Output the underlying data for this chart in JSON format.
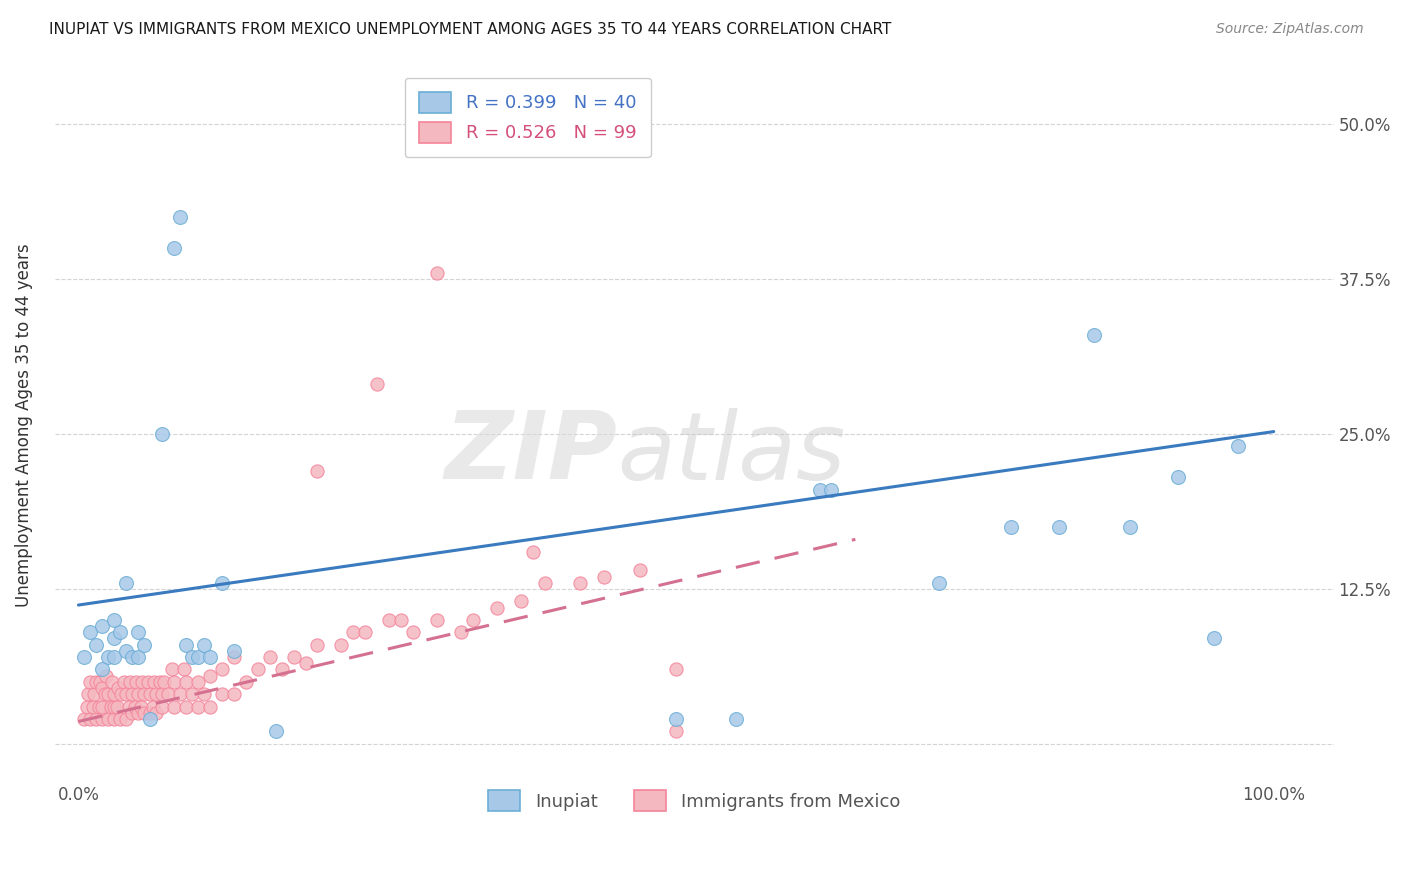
{
  "title": "INUPIAT VS IMMIGRANTS FROM MEXICO UNEMPLOYMENT AMONG AGES 35 TO 44 YEARS CORRELATION CHART",
  "source": "Source: ZipAtlas.com",
  "ylabel": "Unemployment Among Ages 35 to 44 years",
  "xlim": [
    -0.02,
    1.05
  ],
  "ylim": [
    -0.03,
    0.545
  ],
  "inupiat_color": "#a8c8e8",
  "inupiat_edge_color": "#6baed6",
  "mexico_color": "#f4b8c0",
  "mexico_edge_color": "#f4849a",
  "inupiat_R": "0.399",
  "inupiat_N": "40",
  "mexico_R": "0.526",
  "mexico_N": "99",
  "inupiat_trend_x": [
    0.0,
    1.0
  ],
  "inupiat_trend_y": [
    0.112,
    0.252
  ],
  "mexico_trend_x": [
    0.0,
    0.65
  ],
  "mexico_trend_y": [
    0.018,
    0.165
  ],
  "watermark_zip": "ZIP",
  "watermark_atlas": "atlas",
  "background_color": "#ffffff",
  "grid_color": "#d0d0d0",
  "inupiat_x": [
    0.005,
    0.01,
    0.015,
    0.02,
    0.02,
    0.025,
    0.03,
    0.03,
    0.03,
    0.035,
    0.04,
    0.04,
    0.045,
    0.05,
    0.05,
    0.055,
    0.06,
    0.07,
    0.08,
    0.085,
    0.09,
    0.095,
    0.1,
    0.105,
    0.11,
    0.12,
    0.13,
    0.165,
    0.5,
    0.55,
    0.62,
    0.63,
    0.72,
    0.78,
    0.82,
    0.85,
    0.88,
    0.92,
    0.95,
    0.97
  ],
  "inupiat_y": [
    0.07,
    0.09,
    0.08,
    0.06,
    0.095,
    0.07,
    0.07,
    0.085,
    0.1,
    0.09,
    0.075,
    0.13,
    0.07,
    0.07,
    0.09,
    0.08,
    0.02,
    0.25,
    0.4,
    0.425,
    0.08,
    0.07,
    0.07,
    0.08,
    0.07,
    0.13,
    0.075,
    0.01,
    0.02,
    0.02,
    0.205,
    0.205,
    0.13,
    0.175,
    0.175,
    0.33,
    0.175,
    0.215,
    0.085,
    0.24
  ],
  "mexico_x": [
    0.005,
    0.007,
    0.008,
    0.01,
    0.01,
    0.012,
    0.013,
    0.015,
    0.015,
    0.017,
    0.018,
    0.02,
    0.02,
    0.02,
    0.022,
    0.023,
    0.025,
    0.025,
    0.027,
    0.028,
    0.03,
    0.03,
    0.03,
    0.032,
    0.033,
    0.035,
    0.036,
    0.038,
    0.04,
    0.04,
    0.042,
    0.043,
    0.045,
    0.045,
    0.047,
    0.048,
    0.05,
    0.05,
    0.052,
    0.053,
    0.055,
    0.055,
    0.058,
    0.06,
    0.06,
    0.062,
    0.063,
    0.065,
    0.065,
    0.068,
    0.07,
    0.07,
    0.072,
    0.075,
    0.078,
    0.08,
    0.08,
    0.085,
    0.088,
    0.09,
    0.09,
    0.095,
    0.1,
    0.1,
    0.105,
    0.11,
    0.11,
    0.12,
    0.12,
    0.13,
    0.13,
    0.14,
    0.15,
    0.16,
    0.17,
    0.18,
    0.19,
    0.2,
    0.22,
    0.23,
    0.24,
    0.26,
    0.27,
    0.28,
    0.3,
    0.32,
    0.33,
    0.35,
    0.37,
    0.39,
    0.42,
    0.44,
    0.47,
    0.5,
    0.2,
    0.25,
    0.3,
    0.38,
    0.5
  ],
  "mexico_y": [
    0.02,
    0.03,
    0.04,
    0.02,
    0.05,
    0.03,
    0.04,
    0.02,
    0.05,
    0.03,
    0.05,
    0.02,
    0.03,
    0.045,
    0.04,
    0.055,
    0.02,
    0.04,
    0.03,
    0.05,
    0.02,
    0.03,
    0.04,
    0.03,
    0.045,
    0.02,
    0.04,
    0.05,
    0.02,
    0.04,
    0.03,
    0.05,
    0.025,
    0.04,
    0.03,
    0.05,
    0.025,
    0.04,
    0.03,
    0.05,
    0.025,
    0.04,
    0.05,
    0.025,
    0.04,
    0.03,
    0.05,
    0.025,
    0.04,
    0.05,
    0.03,
    0.04,
    0.05,
    0.04,
    0.06,
    0.03,
    0.05,
    0.04,
    0.06,
    0.03,
    0.05,
    0.04,
    0.03,
    0.05,
    0.04,
    0.03,
    0.055,
    0.04,
    0.06,
    0.04,
    0.07,
    0.05,
    0.06,
    0.07,
    0.06,
    0.07,
    0.065,
    0.08,
    0.08,
    0.09,
    0.09,
    0.1,
    0.1,
    0.09,
    0.1,
    0.09,
    0.1,
    0.11,
    0.115,
    0.13,
    0.13,
    0.135,
    0.14,
    0.06,
    0.22,
    0.29,
    0.38,
    0.155,
    0.01
  ]
}
